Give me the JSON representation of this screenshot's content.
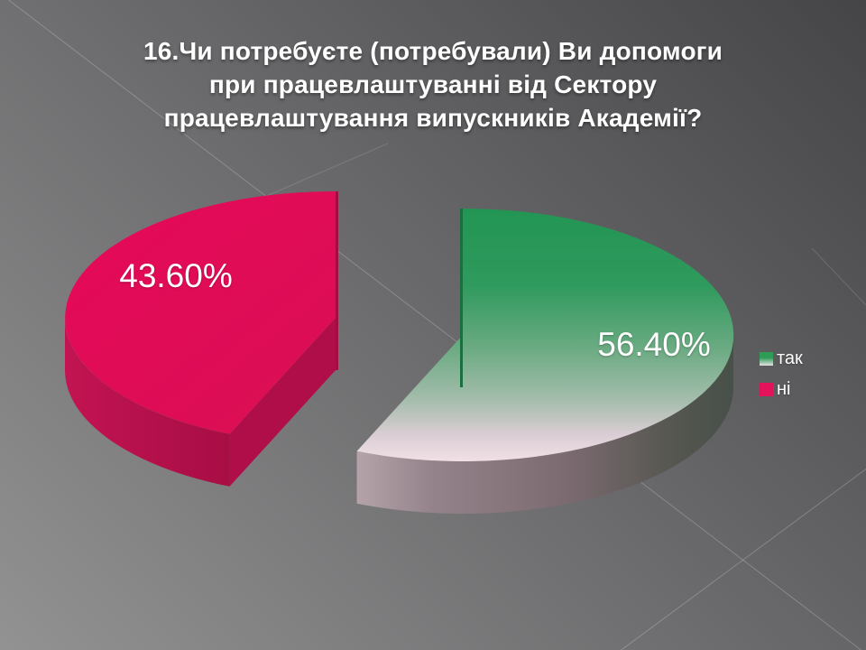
{
  "slide": {
    "title_lines": [
      "16.Чи потребуєте (потребували) Ви допомоги",
      "при працевлаштуванні від Сектору",
      "працевлаштування випускників Академії?"
    ]
  },
  "chart_data": {
    "type": "pie",
    "style": "3d-exploded",
    "categories": [
      "так",
      "ні"
    ],
    "values": [
      56.4,
      43.6
    ],
    "value_labels": [
      "56.40%",
      "43.60%"
    ],
    "data_labels": "percent",
    "start_angle_deg": 0,
    "legend_position": "right",
    "legend": [
      {
        "label": "так"
      },
      {
        "label": "ні"
      }
    ],
    "colors": {
      "tak_top_gradient": [
        "#229554",
        "#2f9a5d",
        "#6cab83",
        "#a6bdad",
        "#d9cdd3",
        "#f4e3e8"
      ],
      "tak_rim_gradient": [
        "#b4a4aa",
        "#94838a",
        "#7c6b71",
        "#54564f",
        "#475049"
      ],
      "tak_edge": "#1a6f3e",
      "ni_top": "#e40a58",
      "ni_top_dark": "#d90f53",
      "ni_cut_side": "#b00e48",
      "ni_rim_gradient": [
        "#c21452",
        "#a70d44"
      ],
      "ni_edge": "#a30d44",
      "legend_tak_marker": [
        "#2e9b57",
        "#e6e3e4"
      ],
      "legend_ni_marker": "#e3125a"
    },
    "background": {
      "top_right": "#454547",
      "bottom_left": "#929292",
      "accent_line_color": "rgba(255,255,255,0.22)"
    }
  }
}
